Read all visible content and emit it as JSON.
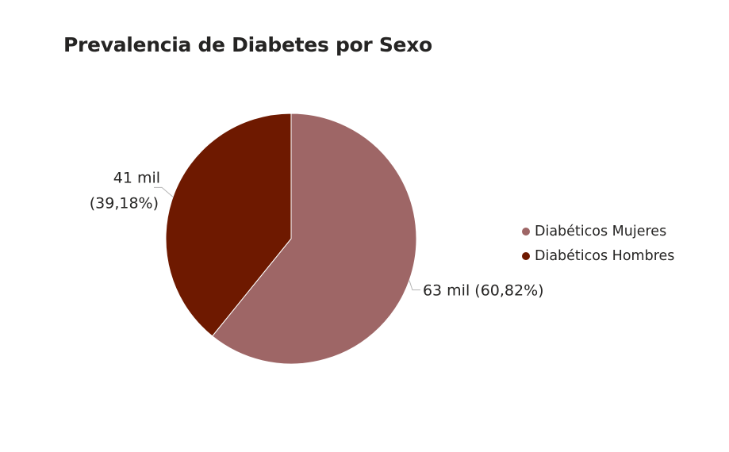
{
  "chart_data": {
    "type": "pie",
    "title": "Prevalencia de Diabetes por Sexo",
    "slices": [
      {
        "name": "Diabéticos Mujeres",
        "value": 63,
        "percent": 60.82,
        "label_line1": "63 mil (60,82%)",
        "label_line2": "",
        "color": "#9e6666"
      },
      {
        "name": "Diabéticos Hombres",
        "value": 41,
        "percent": 39.18,
        "label_line1": "41 mil",
        "label_line2": "(39,18%)",
        "color": "#6e1900"
      }
    ],
    "legend_placement": "right"
  }
}
